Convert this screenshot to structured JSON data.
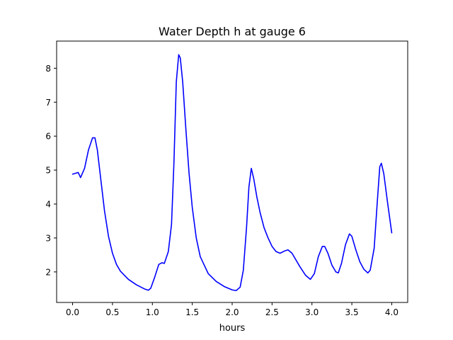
{
  "chart_data": {
    "type": "line",
    "title": "Water Depth h at gauge 6",
    "xlabel": "hours",
    "ylabel": "",
    "xlim": [
      -0.2,
      4.2
    ],
    "ylim": [
      1.1,
      8.8
    ],
    "xticks": [
      0.0,
      0.5,
      1.0,
      1.5,
      2.0,
      2.5,
      3.0,
      3.5,
      4.0
    ],
    "xtick_labels": [
      "0.0",
      "0.5",
      "1.0",
      "1.5",
      "2.0",
      "2.5",
      "3.0",
      "3.5",
      "4.0"
    ],
    "yticks": [
      2,
      3,
      4,
      5,
      6,
      7,
      8
    ],
    "ytick_labels": [
      "2",
      "3",
      "4",
      "5",
      "6",
      "7",
      "8"
    ],
    "grid": false,
    "series": [
      {
        "color": "#0000ff",
        "x": [
          0.0,
          0.03,
          0.07,
          0.1,
          0.15,
          0.2,
          0.25,
          0.28,
          0.31,
          0.35,
          0.4,
          0.45,
          0.5,
          0.55,
          0.6,
          0.7,
          0.8,
          0.9,
          0.95,
          0.98,
          1.03,
          1.08,
          1.12,
          1.15,
          1.2,
          1.24,
          1.27,
          1.3,
          1.33,
          1.35,
          1.38,
          1.42,
          1.46,
          1.5,
          1.55,
          1.6,
          1.7,
          1.8,
          1.9,
          2.0,
          2.05,
          2.1,
          2.14,
          2.18,
          2.21,
          2.24,
          2.27,
          2.31,
          2.35,
          2.4,
          2.45,
          2.5,
          2.55,
          2.6,
          2.66,
          2.7,
          2.75,
          2.85,
          2.92,
          2.98,
          3.03,
          3.08,
          3.13,
          3.16,
          3.2,
          3.25,
          3.3,
          3.33,
          3.37,
          3.42,
          3.47,
          3.5,
          3.55,
          3.6,
          3.65,
          3.7,
          3.73,
          3.78,
          3.82,
          3.85,
          3.87,
          3.9,
          3.95,
          4.0
        ],
        "y": [
          4.88,
          4.9,
          4.93,
          4.78,
          5.05,
          5.6,
          5.95,
          5.95,
          5.6,
          4.8,
          3.8,
          3.05,
          2.55,
          2.22,
          2.02,
          1.78,
          1.62,
          1.5,
          1.46,
          1.52,
          1.85,
          2.22,
          2.27,
          2.25,
          2.6,
          3.4,
          5.2,
          7.6,
          8.4,
          8.3,
          7.6,
          6.2,
          4.9,
          3.9,
          3.0,
          2.45,
          1.95,
          1.72,
          1.57,
          1.47,
          1.45,
          1.55,
          2.05,
          3.3,
          4.5,
          5.05,
          4.75,
          4.2,
          3.75,
          3.3,
          3.0,
          2.75,
          2.6,
          2.55,
          2.62,
          2.65,
          2.55,
          2.15,
          1.9,
          1.78,
          1.95,
          2.45,
          2.75,
          2.75,
          2.55,
          2.2,
          2.0,
          1.97,
          2.25,
          2.8,
          3.12,
          3.05,
          2.65,
          2.3,
          2.08,
          1.97,
          2.05,
          2.7,
          4.1,
          5.1,
          5.2,
          4.9,
          4.0,
          3.15
        ]
      }
    ]
  }
}
